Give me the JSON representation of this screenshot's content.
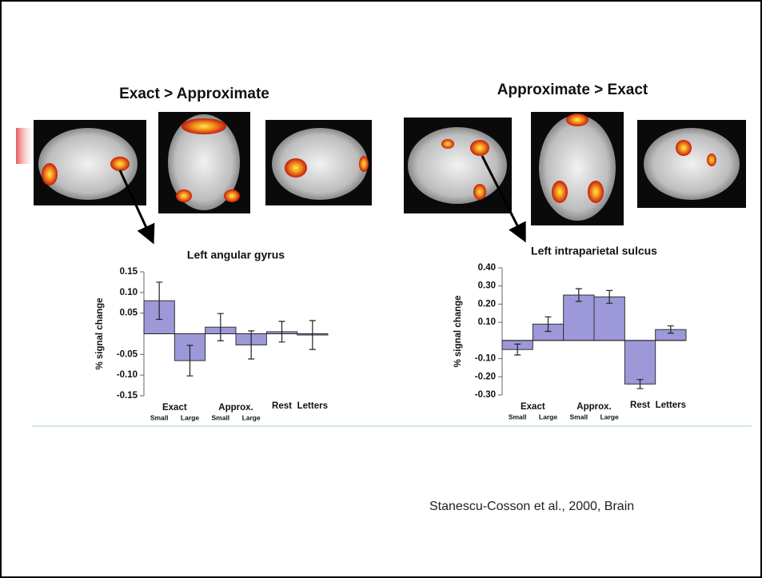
{
  "headings": [
    "Exact > Approximate",
    "Approximate > Exact"
  ],
  "citation": "Stanescu-Cosson et al., 2000, Brain",
  "chart_data": [
    {
      "type": "bar",
      "title": "Left angular gyrus",
      "ylabel": "% signal change",
      "group_labels": [
        "Exact",
        "Approx."
      ],
      "categories": [
        "Small",
        "Large",
        "Small",
        "Large",
        "Rest",
        "Letters"
      ],
      "values": [
        0.08,
        -0.065,
        0.016,
        -0.027,
        0.005,
        -0.003
      ],
      "errors": [
        0.045,
        0.037,
        0.033,
        0.034,
        0.025,
        0.035
      ],
      "color": "#9d98d8",
      "ylim": [
        -0.15,
        0.15
      ],
      "yticks": [
        0.15,
        {
          "value": 0.1,
          "label": "0.10"
        },
        0.05,
        -0.05,
        {
          "value": -0.1,
          "label": "-0.10"
        },
        -0.15
      ]
    },
    {
      "type": "bar",
      "title": "Left intraparietal sulcus",
      "ylabel": "% signal change",
      "group_labels": [
        "Exact",
        "Approx."
      ],
      "categories": [
        "Small",
        "Large",
        "Small",
        "Large",
        "Rest",
        "Letters"
      ],
      "values": [
        -0.05,
        0.09,
        0.25,
        0.24,
        -0.24,
        0.06
      ],
      "errors": [
        0.03,
        0.04,
        0.035,
        0.035,
        0.025,
        0.02
      ],
      "color": "#9d98d8",
      "ylim": [
        -0.3,
        0.4
      ],
      "yticks": [
        {
          "value": 0.4,
          "label": "0.40"
        },
        {
          "value": 0.3,
          "label": "0.30"
        },
        {
          "value": 0.2,
          "label": "0.20"
        },
        {
          "value": 0.1,
          "label": "0.10"
        },
        {
          "value": -0.1,
          "label": "-0.10"
        },
        {
          "value": -0.2,
          "label": "-0.20"
        },
        {
          "value": -0.3,
          "label": "-0.30"
        }
      ]
    }
  ]
}
